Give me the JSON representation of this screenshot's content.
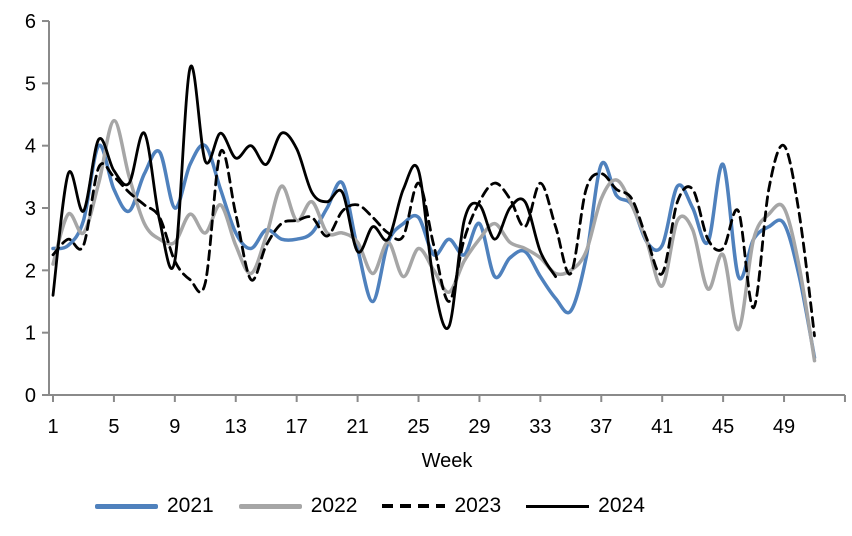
{
  "chart_data": {
    "type": "line",
    "title": "",
    "xlabel": "Week",
    "ylabel": "",
    "xlim": [
      1,
      53
    ],
    "ylim": [
      0,
      6
    ],
    "grid": false,
    "smooth_lines": true,
    "legend_position": "bottom",
    "axis_color": "#8A8A8A",
    "text_color": "#000000",
    "y_ticks": [
      0,
      1,
      2,
      3,
      4,
      5,
      6
    ],
    "x_tick_marks": [
      1,
      5,
      9,
      13,
      17,
      21,
      25,
      29,
      33,
      37,
      41,
      45,
      49,
      53
    ],
    "x_tick_labels": [
      1,
      5,
      9,
      13,
      17,
      21,
      25,
      29,
      33,
      37,
      41,
      45,
      49
    ],
    "x_unit": "week of year",
    "series": [
      {
        "name": "2021",
        "color": "#4F81BD",
        "style": "solid",
        "width": 3.5,
        "start_week": 1,
        "values": [
          2.35,
          2.4,
          2.8,
          4.0,
          3.3,
          2.95,
          3.55,
          3.9,
          3.0,
          3.7,
          4.0,
          3.3,
          2.6,
          2.35,
          2.65,
          2.5,
          2.5,
          2.6,
          3.0,
          3.4,
          2.35,
          1.5,
          2.45,
          2.75,
          2.85,
          2.25,
          2.5,
          2.25,
          2.75,
          1.9,
          2.2,
          2.3,
          1.9,
          1.55,
          1.35,
          2.2,
          3.7,
          3.2,
          3.05,
          2.45,
          2.4,
          3.35,
          3.0,
          2.45,
          3.7,
          1.9,
          2.5,
          2.7,
          2.75,
          1.9,
          0.6
        ]
      },
      {
        "name": "2022",
        "color": "#A6A6A6",
        "style": "solid",
        "width": 3.5,
        "start_week": 1,
        "values": [
          2.1,
          2.9,
          2.6,
          3.4,
          4.4,
          3.5,
          2.75,
          2.5,
          2.45,
          2.9,
          2.6,
          3.05,
          2.4,
          1.95,
          2.55,
          3.35,
          2.8,
          3.1,
          2.6,
          2.6,
          2.45,
          1.95,
          2.45,
          1.9,
          2.35,
          2.0,
          1.65,
          2.15,
          2.5,
          2.75,
          2.45,
          2.35,
          2.2,
          1.95,
          2.0,
          2.3,
          3.15,
          3.45,
          3.05,
          2.45,
          1.75,
          2.8,
          2.65,
          1.7,
          2.25,
          1.05,
          2.5,
          2.9,
          3.0,
          2.05,
          0.55
        ]
      },
      {
        "name": "2023",
        "color": "#000000",
        "style": "dashed",
        "width": 2.8,
        "start_week": 1,
        "values": [
          2.25,
          2.5,
          2.4,
          3.65,
          3.5,
          3.25,
          3.05,
          2.85,
          2.15,
          1.85,
          1.8,
          3.9,
          2.9,
          1.85,
          2.4,
          2.75,
          2.8,
          2.85,
          2.55,
          2.95,
          3.05,
          2.85,
          2.6,
          2.55,
          3.4,
          2.4,
          1.5,
          2.5,
          3.1,
          3.4,
          3.15,
          2.7,
          3.4,
          2.7,
          1.95,
          3.3,
          3.55,
          3.3,
          3.15,
          2.5,
          1.95,
          3.1,
          3.3,
          2.5,
          2.35,
          2.95,
          1.4,
          3.3,
          4.0,
          2.9,
          0.95
        ]
      },
      {
        "name": "2024",
        "color": "#000000",
        "style": "solid",
        "width": 2.8,
        "start_week": 1,
        "values": [
          1.6,
          3.55,
          2.95,
          4.1,
          3.6,
          3.4,
          4.2,
          2.8,
          2.15,
          5.25,
          3.75,
          4.2,
          3.8,
          4.0,
          3.7,
          4.2,
          3.95,
          3.25,
          3.1,
          3.25,
          2.3,
          2.7,
          2.5,
          3.3,
          3.6,
          1.8,
          1.1,
          2.8,
          3.05,
          2.5,
          3.0,
          3.1,
          2.3,
          1.9
        ]
      }
    ]
  }
}
